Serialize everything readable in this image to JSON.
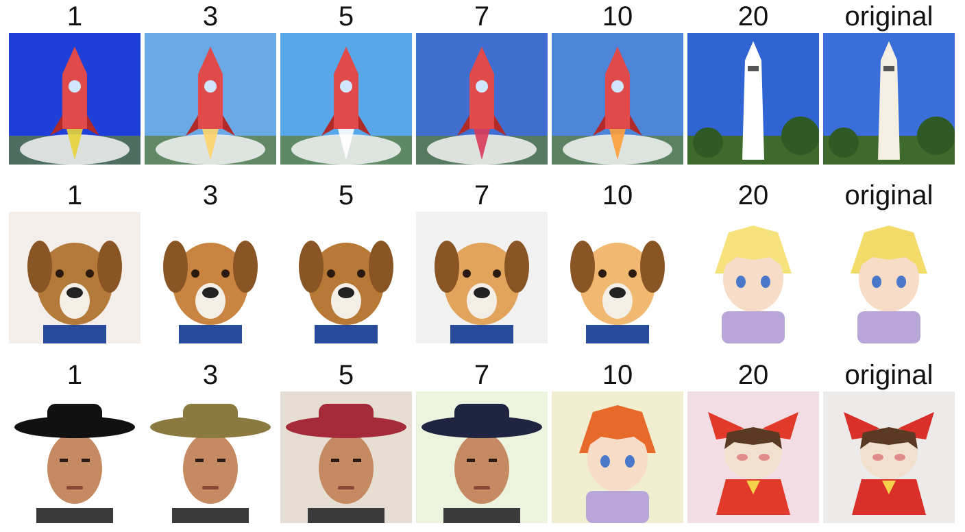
{
  "rows": [
    {
      "labels": [
        "1",
        "3",
        "5",
        "7",
        "10",
        "20",
        "original"
      ],
      "tiles": [
        {
          "name": "rocket-cartoon-image",
          "subject": "rocket",
          "bg": "#1e3fd8",
          "accent": "#e8d338"
        },
        {
          "name": "rocket-launch-rays-image",
          "subject": "rocket",
          "bg": "#6aa9e6",
          "accent": "#ffd36a"
        },
        {
          "name": "rocket-launch-pad-image",
          "subject": "rocket",
          "bg": "#58a7e8",
          "accent": "#ffffff"
        },
        {
          "name": "rocket-standing-image",
          "subject": "rocket",
          "bg": "#3f6ed0",
          "accent": "#d93a5a"
        },
        {
          "name": "shuttle-launch-image",
          "subject": "rocket",
          "bg": "#4d86d8",
          "accent": "#ff9c3a"
        },
        {
          "name": "tower-tinted-image",
          "subject": "tower",
          "bg": "#2f64d2",
          "accent": "#ffffff"
        },
        {
          "name": "tower-original-image",
          "subject": "tower",
          "bg": "#3a6ed8",
          "accent": "#f4efe2"
        }
      ]
    },
    {
      "labels": [
        "1",
        "3",
        "5",
        "7",
        "10",
        "20",
        "original"
      ],
      "tiles": [
        {
          "name": "dog-lying-image",
          "subject": "dog",
          "bg": "#f3eeea",
          "accent": "#b47a3a"
        },
        {
          "name": "dog-portrait-image",
          "subject": "dog",
          "bg": "#ffffff",
          "accent": "#c88440"
        },
        {
          "name": "dog-in-suit-image",
          "subject": "dog",
          "bg": "#ffffff",
          "accent": "#b87836"
        },
        {
          "name": "dog-with-goggles-image",
          "subject": "dog",
          "bg": "#f1f1f1",
          "accent": "#e2a35c"
        },
        {
          "name": "puppy-in-jacket-image",
          "subject": "dog",
          "bg": "#ffffff",
          "accent": "#f0b870"
        },
        {
          "name": "anime-plush-tinted-image",
          "subject": "anime",
          "bg": "#ffffff",
          "accent": "#f6e27a"
        },
        {
          "name": "anime-plush-original-image",
          "subject": "anime",
          "bg": "#ffffff",
          "accent": "#f3db6a"
        }
      ]
    },
    {
      "labels": [
        "1",
        "3",
        "5",
        "7",
        "10",
        "20",
        "original"
      ],
      "tiles": [
        {
          "name": "man-black-hat-image",
          "subject": "man",
          "bg": "#ffffff",
          "accent": "#111111"
        },
        {
          "name": "cartoon-man-hat-image",
          "subject": "man",
          "bg": "#ffffff",
          "accent": "#8a7a40"
        },
        {
          "name": "man-feathered-hat-image",
          "subject": "man",
          "bg": "#e6ddd3",
          "accent": "#a52a3a"
        },
        {
          "name": "man-profile-hat-image",
          "subject": "man",
          "bg": "#ecf3de",
          "accent": "#1f2540"
        },
        {
          "name": "anime-girl-bow-image",
          "subject": "anime",
          "bg": "#f0eecf",
          "accent": "#e86a2a"
        },
        {
          "name": "plush-doll-tinted-image",
          "subject": "doll",
          "bg": "#f2dde4",
          "accent": "#e23a2a"
        },
        {
          "name": "plush-doll-original-image",
          "subject": "doll",
          "bg": "#ecebea",
          "accent": "#d9302a"
        }
      ]
    }
  ]
}
